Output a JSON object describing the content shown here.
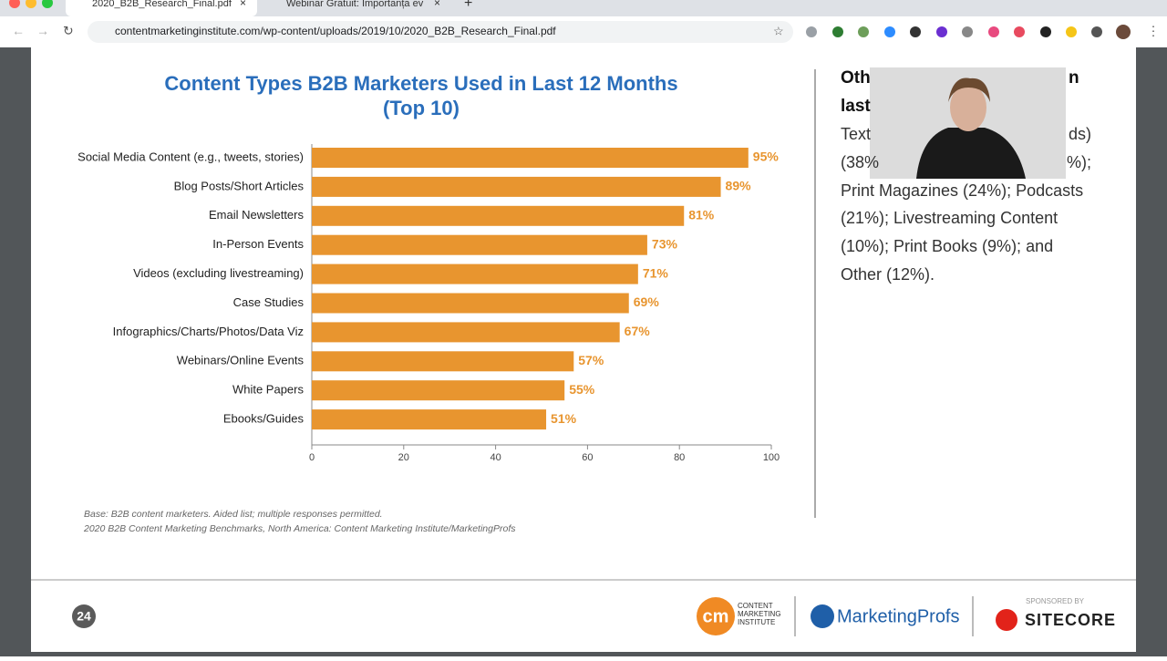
{
  "browser": {
    "tabs": [
      "2020_B2B_Research_Final.pdf",
      "Webinar Gratuit: Importanța ev"
    ],
    "url": "contentmarketinginstitute.com/wp-content/uploads/2019/10/2020_B2B_Research_Final.pdf"
  },
  "chart_data": {
    "type": "bar",
    "orientation": "horizontal",
    "title_lines": [
      "Content Types B2B Marketers Used in Last 12 Months",
      "(Top 10)"
    ],
    "categories": [
      "Social Media Content (e.g., tweets, stories)",
      "Blog Posts/Short Articles",
      "Email Newsletters",
      "In-Person Events",
      "Videos (excluding livestreaming)",
      "Case Studies",
      "Infographics/Charts/Photos/Data Viz",
      "Webinars/Online Events",
      "White Papers",
      "Ebooks/Guides"
    ],
    "values": [
      95,
      89,
      81,
      73,
      71,
      69,
      67,
      57,
      55,
      51
    ],
    "value_labels": [
      "95%",
      "89%",
      "81%",
      "73%",
      "71%",
      "69%",
      "67%",
      "57%",
      "55%",
      "51%"
    ],
    "color": "#e8952f",
    "xlim": [
      0,
      100
    ],
    "xticks": [
      0,
      20,
      40,
      60,
      80,
      100
    ]
  },
  "notes": [
    "Base: B2B content marketers. Aided list; multiple responses permitted.",
    "2020 B2B Content Marketing Benchmarks, North America: Content Marketing Institute/MarketingProfs"
  ],
  "sidebar": [
    "Oth",
    "n",
    "last",
    "Text",
    "ds)",
    "(38%",
    "%);",
    "Print Magazines (24%); Podcasts",
    "(21%); Livestreaming Content",
    "(10%); Print Books (9%); and",
    "Other (12%)."
  ],
  "footer": {
    "page": "24",
    "cmi_badge": "cm",
    "cmi_name": [
      "CONTENT",
      "MARKETING",
      "INSTITUTE"
    ],
    "marketingprofs": "MarketingProfs",
    "sponsored": "SPONSORED BY",
    "sitecore": "SITECORE"
  }
}
